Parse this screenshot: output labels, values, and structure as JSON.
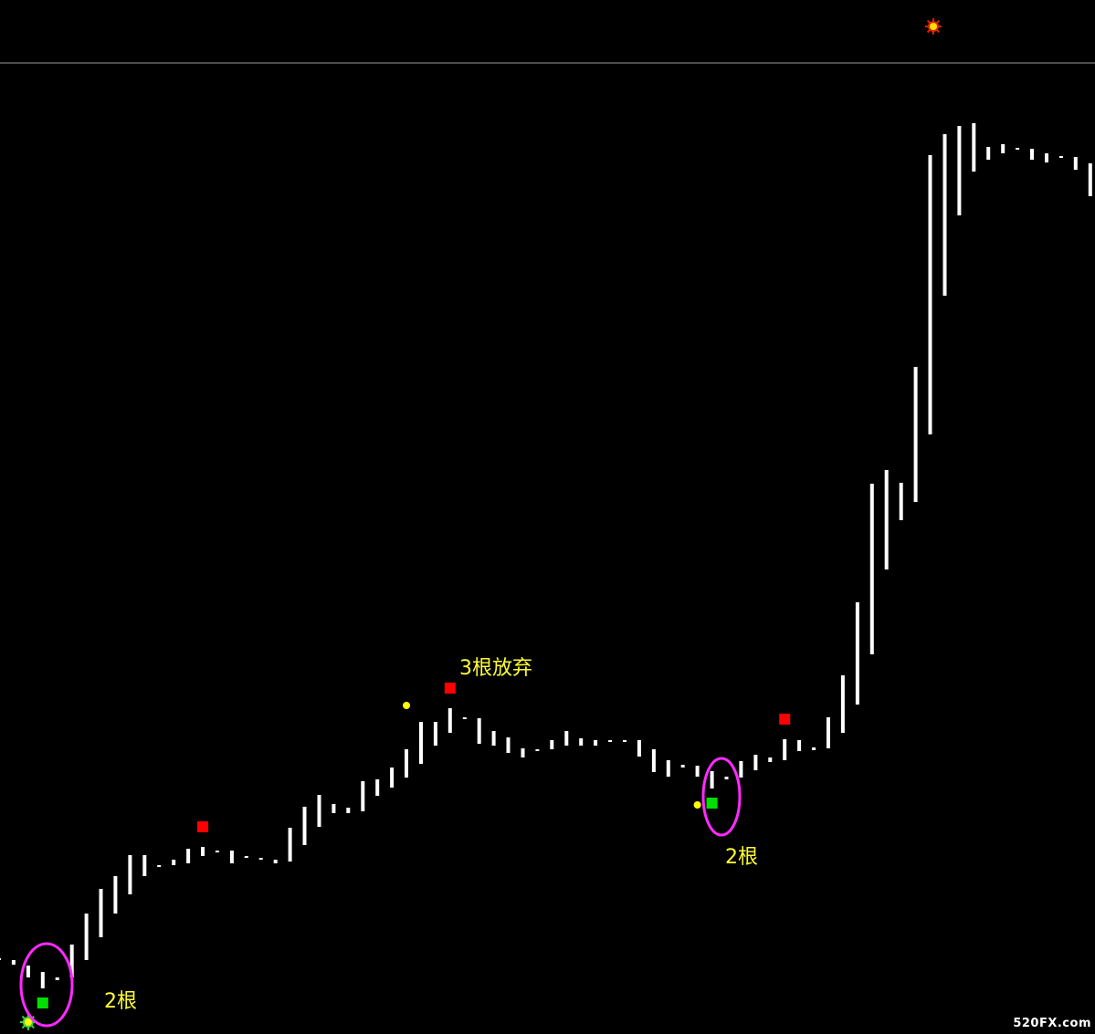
{
  "chart_data": {
    "type": "bar",
    "bars": [
      {
        "hi": 83,
        "lo": 81
      },
      {
        "hi": 81,
        "lo": 76
      },
      {
        "hi": 75,
        "lo": 62
      },
      {
        "hi": 68,
        "lo": 50
      },
      {
        "hi": 62,
        "lo": 59
      },
      {
        "hi": 98,
        "lo": 62
      },
      {
        "hi": 132,
        "lo": 81
      },
      {
        "hi": 159,
        "lo": 106
      },
      {
        "hi": 173,
        "lo": 132
      },
      {
        "hi": 196,
        "lo": 153
      },
      {
        "hi": 196,
        "lo": 173
      },
      {
        "hi": 185,
        "lo": 185
      },
      {
        "hi": 191,
        "lo": 185
      },
      {
        "hi": 203,
        "lo": 187
      },
      {
        "hi": 205,
        "lo": 195
      },
      {
        "hi": 201,
        "lo": 199
      },
      {
        "hi": 201,
        "lo": 187
      },
      {
        "hi": 195,
        "lo": 193
      },
      {
        "hi": 193,
        "lo": 191
      },
      {
        "hi": 191,
        "lo": 187
      },
      {
        "hi": 226,
        "lo": 189
      },
      {
        "hi": 249,
        "lo": 207
      },
      {
        "hi": 262,
        "lo": 227
      },
      {
        "hi": 252,
        "lo": 242
      },
      {
        "hi": 248,
        "lo": 242
      },
      {
        "hi": 277,
        "lo": 244
      },
      {
        "hi": 279,
        "lo": 261
      },
      {
        "hi": 292,
        "lo": 270
      },
      {
        "hi": 312,
        "lo": 281
      },
      {
        "hi": 342,
        "lo": 296
      },
      {
        "hi": 342,
        "lo": 316
      },
      {
        "hi": 357,
        "lo": 330
      },
      {
        "hi": 347,
        "lo": 345
      },
      {
        "hi": 346,
        "lo": 318
      },
      {
        "hi": 332,
        "lo": 316
      },
      {
        "hi": 325,
        "lo": 308
      },
      {
        "hi": 313,
        "lo": 303
      },
      {
        "hi": 312,
        "lo": 310
      },
      {
        "hi": 322,
        "lo": 312
      },
      {
        "hi": 332,
        "lo": 316
      },
      {
        "hi": 324,
        "lo": 316
      },
      {
        "hi": 322,
        "lo": 316
      },
      {
        "hi": 322,
        "lo": 320
      },
      {
        "hi": 322,
        "lo": 320
      },
      {
        "hi": 322,
        "lo": 304
      },
      {
        "hi": 312,
        "lo": 287
      },
      {
        "hi": 300,
        "lo": 282
      },
      {
        "hi": 295,
        "lo": 292
      },
      {
        "hi": 294,
        "lo": 282
      },
      {
        "hi": 288,
        "lo": 269
      },
      {
        "hi": 282,
        "lo": 279
      },
      {
        "hi": 299,
        "lo": 281
      },
      {
        "hi": 306,
        "lo": 289
      },
      {
        "hi": 303,
        "lo": 298
      },
      {
        "hi": 323,
        "lo": 300
      },
      {
        "hi": 322,
        "lo": 310
      },
      {
        "hi": 314,
        "lo": 311
      },
      {
        "hi": 347,
        "lo": 313
      },
      {
        "hi": 393,
        "lo": 330
      },
      {
        "hi": 473,
        "lo": 361
      },
      {
        "hi": 603,
        "lo": 416
      },
      {
        "hi": 618,
        "lo": 509
      },
      {
        "hi": 604,
        "lo": 563
      },
      {
        "hi": 731,
        "lo": 583
      },
      {
        "hi": 963,
        "lo": 657
      },
      {
        "hi": 986,
        "lo": 809
      },
      {
        "hi": 995,
        "lo": 897
      },
      {
        "hi": 998,
        "lo": 945
      },
      {
        "hi": 972,
        "lo": 958
      },
      {
        "hi": 975,
        "lo": 965
      },
      {
        "hi": 971,
        "lo": 969
      },
      {
        "hi": 970,
        "lo": 958
      },
      {
        "hi": 965,
        "lo": 955
      },
      {
        "hi": 962,
        "lo": 960
      },
      {
        "hi": 961,
        "lo": 947
      },
      {
        "hi": 954,
        "lo": 918
      }
    ],
    "signals": [
      {
        "type": "sun-up",
        "bar": 2,
        "color": "#3ad23a"
      },
      {
        "type": "square-buy",
        "bar": 3,
        "color": "#00e000"
      },
      {
        "type": "square-sell",
        "bar": 14,
        "color": "#ff0000"
      },
      {
        "type": "dot",
        "bar": 28,
        "color": "#ffff00"
      },
      {
        "type": "square-sell",
        "bar": 31,
        "color": "#ff0000"
      },
      {
        "type": "dot",
        "bar": 48,
        "color": "#ffff00"
      },
      {
        "type": "square-buy",
        "bar": 49,
        "color": "#00e000"
      },
      {
        "type": "square-sell",
        "bar": 54,
        "color": "#ff0000"
      }
    ],
    "top_signal": {
      "type": "sun-down",
      "color": "#ffdd00",
      "ring": "#dd2200"
    },
    "annotations": [
      {
        "text": "2根"
      },
      {
        "text": "3根放弃"
      },
      {
        "text": "2根"
      }
    ],
    "highlight_color": "#ff2aff",
    "separator_color": "#9a9a9a",
    "bar_color": "#ffffff",
    "watermark": "520FX.com"
  }
}
